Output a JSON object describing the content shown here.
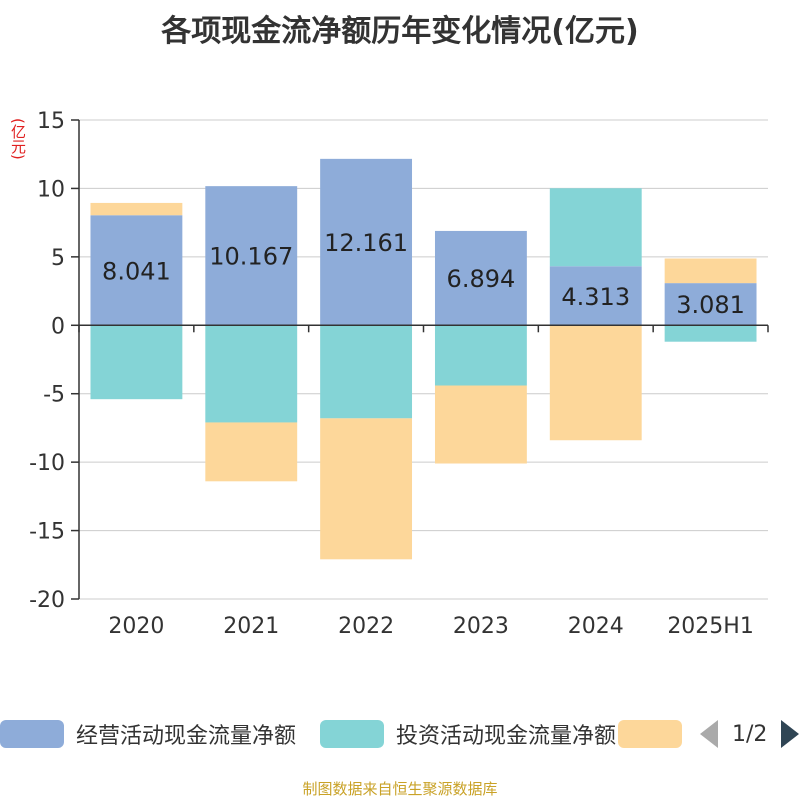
{
  "title": "各项现金流净额历年变化情况(亿元)",
  "unit_label": "(亿元)",
  "footer": "制图数据来自恒生聚源数据库",
  "legend": {
    "pager_text": "1/2",
    "prev_icon": "chevron-left-icon",
    "next_icon": "chevron-right-icon"
  },
  "colors": {
    "operating": "#8eacd9",
    "investing": "#84d4d6",
    "financing": "#fdd79a",
    "grid": "#cccccc",
    "axis": "#333333"
  },
  "chart_data": {
    "type": "bar",
    "stacked": true,
    "categories": [
      "2020",
      "2021",
      "2022",
      "2023",
      "2024",
      "2025H1"
    ],
    "ylim": [
      -20,
      15
    ],
    "yticks": [
      15,
      10,
      5,
      0,
      -5,
      -10,
      -15,
      -20
    ],
    "ylabel": "(亿元)",
    "grid": true,
    "legend_position": "bottom",
    "series": [
      {
        "name": "经营活动现金流量净额",
        "values": [
          8.041,
          10.167,
          12.161,
          6.894,
          4.313,
          3.081
        ],
        "labeled": true
      },
      {
        "name": "投资活动现金流量净额",
        "values": [
          -5.4,
          -7.1,
          -6.8,
          -4.4,
          5.7,
          -1.2
        ],
        "labeled": false
      },
      {
        "name": "",
        "values": [
          0.9,
          -4.3,
          -10.3,
          -5.7,
          -8.4,
          1.8
        ],
        "labeled": false
      }
    ]
  }
}
